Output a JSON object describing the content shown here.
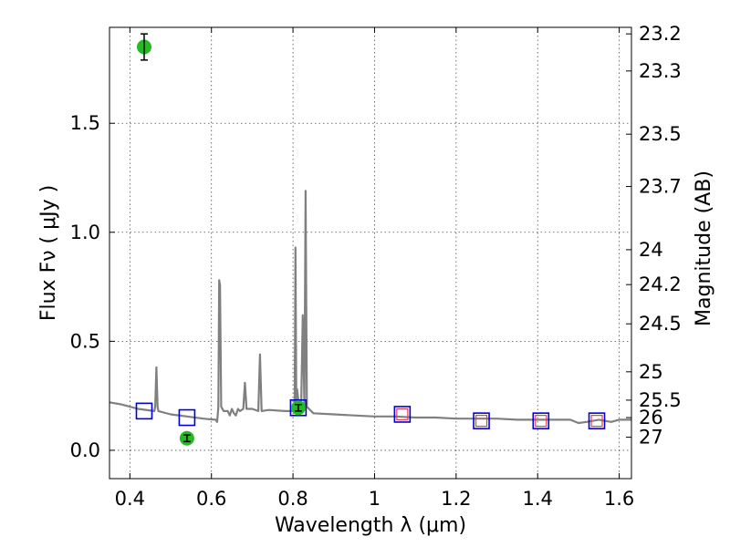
{
  "chart_data": {
    "type": "scatter",
    "title": "",
    "xlabel": "Wavelength  λ (μm)",
    "ylabel": "Flux  Fν  ( μJy )",
    "ylabel_right": "Magnitude (AB)",
    "xlim": [
      0.35,
      1.63
    ],
    "ylim": [
      -0.13,
      1.94
    ],
    "grid": true,
    "x_ticks": [
      0.4,
      0.6,
      0.8,
      1.0,
      1.2,
      1.4,
      1.6
    ],
    "x_tick_labels": [
      "0.4",
      "0.6",
      "0.8",
      "1",
      "1.2",
      "1.4",
      "1.6"
    ],
    "y_ticks": [
      0.0,
      0.5,
      1.0,
      1.5
    ],
    "y_tick_labels": [
      "0.0",
      "0.5",
      "1.0",
      "1.5"
    ],
    "right_ticks": [
      {
        "label": "23.2",
        "flux": 1.91
      },
      {
        "label": "23.3",
        "flux": 1.74
      },
      {
        "label": "23.5",
        "flux": 1.45
      },
      {
        "label": "23.7",
        "flux": 1.21
      },
      {
        "label": "24",
        "flux": 0.92
      },
      {
        "label": "24.2",
        "flux": 0.76
      },
      {
        "label": "24.5",
        "flux": 0.58
      },
      {
        "label": "25",
        "flux": 0.36
      },
      {
        "label": "25.5",
        "flux": 0.23
      },
      {
        "label": "26",
        "flux": 0.15
      },
      {
        "label": "27",
        "flux": 0.06
      }
    ],
    "colors": {
      "spectrum": "#808080",
      "observed": "#22bb22",
      "model_box": "#0000dd",
      "model_inner": "#dd4444"
    },
    "series": [
      {
        "kind": "line",
        "points": [
          [
            0.35,
            0.22
          ],
          [
            0.38,
            0.21
          ],
          [
            0.42,
            0.19
          ],
          [
            0.46,
            0.18
          ],
          [
            0.462,
            0.2
          ],
          [
            0.465,
            0.38
          ],
          [
            0.468,
            0.2
          ],
          [
            0.47,
            0.18
          ],
          [
            0.5,
            0.165
          ],
          [
            0.54,
            0.155
          ],
          [
            0.58,
            0.145
          ],
          [
            0.61,
            0.14
          ],
          [
            0.614,
            0.13
          ],
          [
            0.617,
            0.2
          ],
          [
            0.619,
            0.78
          ],
          [
            0.621,
            0.76
          ],
          [
            0.624,
            0.2
          ],
          [
            0.63,
            0.18
          ],
          [
            0.64,
            0.18
          ],
          [
            0.645,
            0.16
          ],
          [
            0.65,
            0.19
          ],
          [
            0.655,
            0.17
          ],
          [
            0.66,
            0.16
          ],
          [
            0.665,
            0.19
          ],
          [
            0.67,
            0.18
          ],
          [
            0.678,
            0.19
          ],
          [
            0.682,
            0.31
          ],
          [
            0.686,
            0.19
          ],
          [
            0.7,
            0.19
          ],
          [
            0.715,
            0.18
          ],
          [
            0.719,
            0.44
          ],
          [
            0.723,
            0.18
          ],
          [
            0.74,
            0.185
          ],
          [
            0.78,
            0.18
          ],
          [
            0.8,
            0.18
          ],
          [
            0.804,
            0.19
          ],
          [
            0.806,
            0.93
          ],
          [
            0.808,
            0.22
          ],
          [
            0.81,
            0.28
          ],
          [
            0.815,
            0.2
          ],
          [
            0.82,
            0.19
          ],
          [
            0.824,
            0.62
          ],
          [
            0.828,
            0.2
          ],
          [
            0.831,
            1.19
          ],
          [
            0.834,
            0.2
          ],
          [
            0.85,
            0.17
          ],
          [
            0.9,
            0.165
          ],
          [
            0.95,
            0.16
          ],
          [
            1.0,
            0.155
          ],
          [
            1.05,
            0.155
          ],
          [
            1.1,
            0.15
          ],
          [
            1.15,
            0.15
          ],
          [
            1.2,
            0.145
          ],
          [
            1.25,
            0.145
          ],
          [
            1.3,
            0.145
          ],
          [
            1.35,
            0.14
          ],
          [
            1.4,
            0.14
          ],
          [
            1.45,
            0.14
          ],
          [
            1.48,
            0.14
          ],
          [
            1.5,
            0.125
          ],
          [
            1.52,
            0.13
          ],
          [
            1.55,
            0.14
          ],
          [
            1.58,
            0.13
          ],
          [
            1.6,
            0.14
          ],
          [
            1.63,
            0.14
          ]
        ]
      },
      {
        "kind": "observed",
        "points": [
          {
            "x": 0.435,
            "y": 1.85,
            "err": 0.06
          },
          {
            "x": 0.54,
            "y": 0.055,
            "err": 0.015
          },
          {
            "x": 0.813,
            "y": 0.195,
            "err": 0.015
          }
        ]
      },
      {
        "kind": "model",
        "points": [
          {
            "x": 0.435,
            "y": 0.18,
            "inner": false
          },
          {
            "x": 0.54,
            "y": 0.15,
            "inner": false
          },
          {
            "x": 0.813,
            "y": 0.195,
            "inner": false
          },
          {
            "x": 1.068,
            "y": 0.165,
            "inner": true
          },
          {
            "x": 1.262,
            "y": 0.135,
            "inner": true
          },
          {
            "x": 1.408,
            "y": 0.135,
            "inner": true
          },
          {
            "x": 1.545,
            "y": 0.135,
            "inner": true
          }
        ]
      }
    ]
  }
}
